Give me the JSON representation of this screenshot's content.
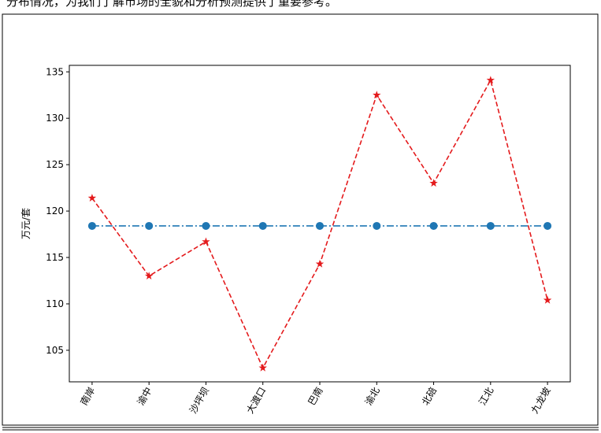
{
  "paragraph": "分布情况，为我们了解市场的全貌和分析预测提供了重要参考。",
  "chart_data": {
    "type": "line",
    "ylabel": "万元/套",
    "categories": [
      "南岸",
      "渝中",
      "沙坪坝",
      "大渡口",
      "巴南",
      "渝北",
      "北碚",
      "江北",
      "九龙坡"
    ],
    "series": [
      {
        "color": "#1f77b4",
        "linestyle": "dashdot",
        "marker": "circle",
        "values": [
          118.4,
          118.4,
          118.4,
          118.4,
          118.4,
          118.4,
          118.4,
          118.4,
          118.4
        ]
      },
      {
        "color": "#e41a1c",
        "linestyle": "dashed",
        "marker": "star",
        "values": [
          121.4,
          113,
          116.7,
          103.1,
          114.3,
          132.5,
          123,
          134.1,
          110.4
        ]
      }
    ],
    "ylim": [
      101.6,
      135.7
    ],
    "yticks": [
      105,
      110,
      115,
      120,
      125,
      130,
      135
    ],
    "grid": false
  }
}
